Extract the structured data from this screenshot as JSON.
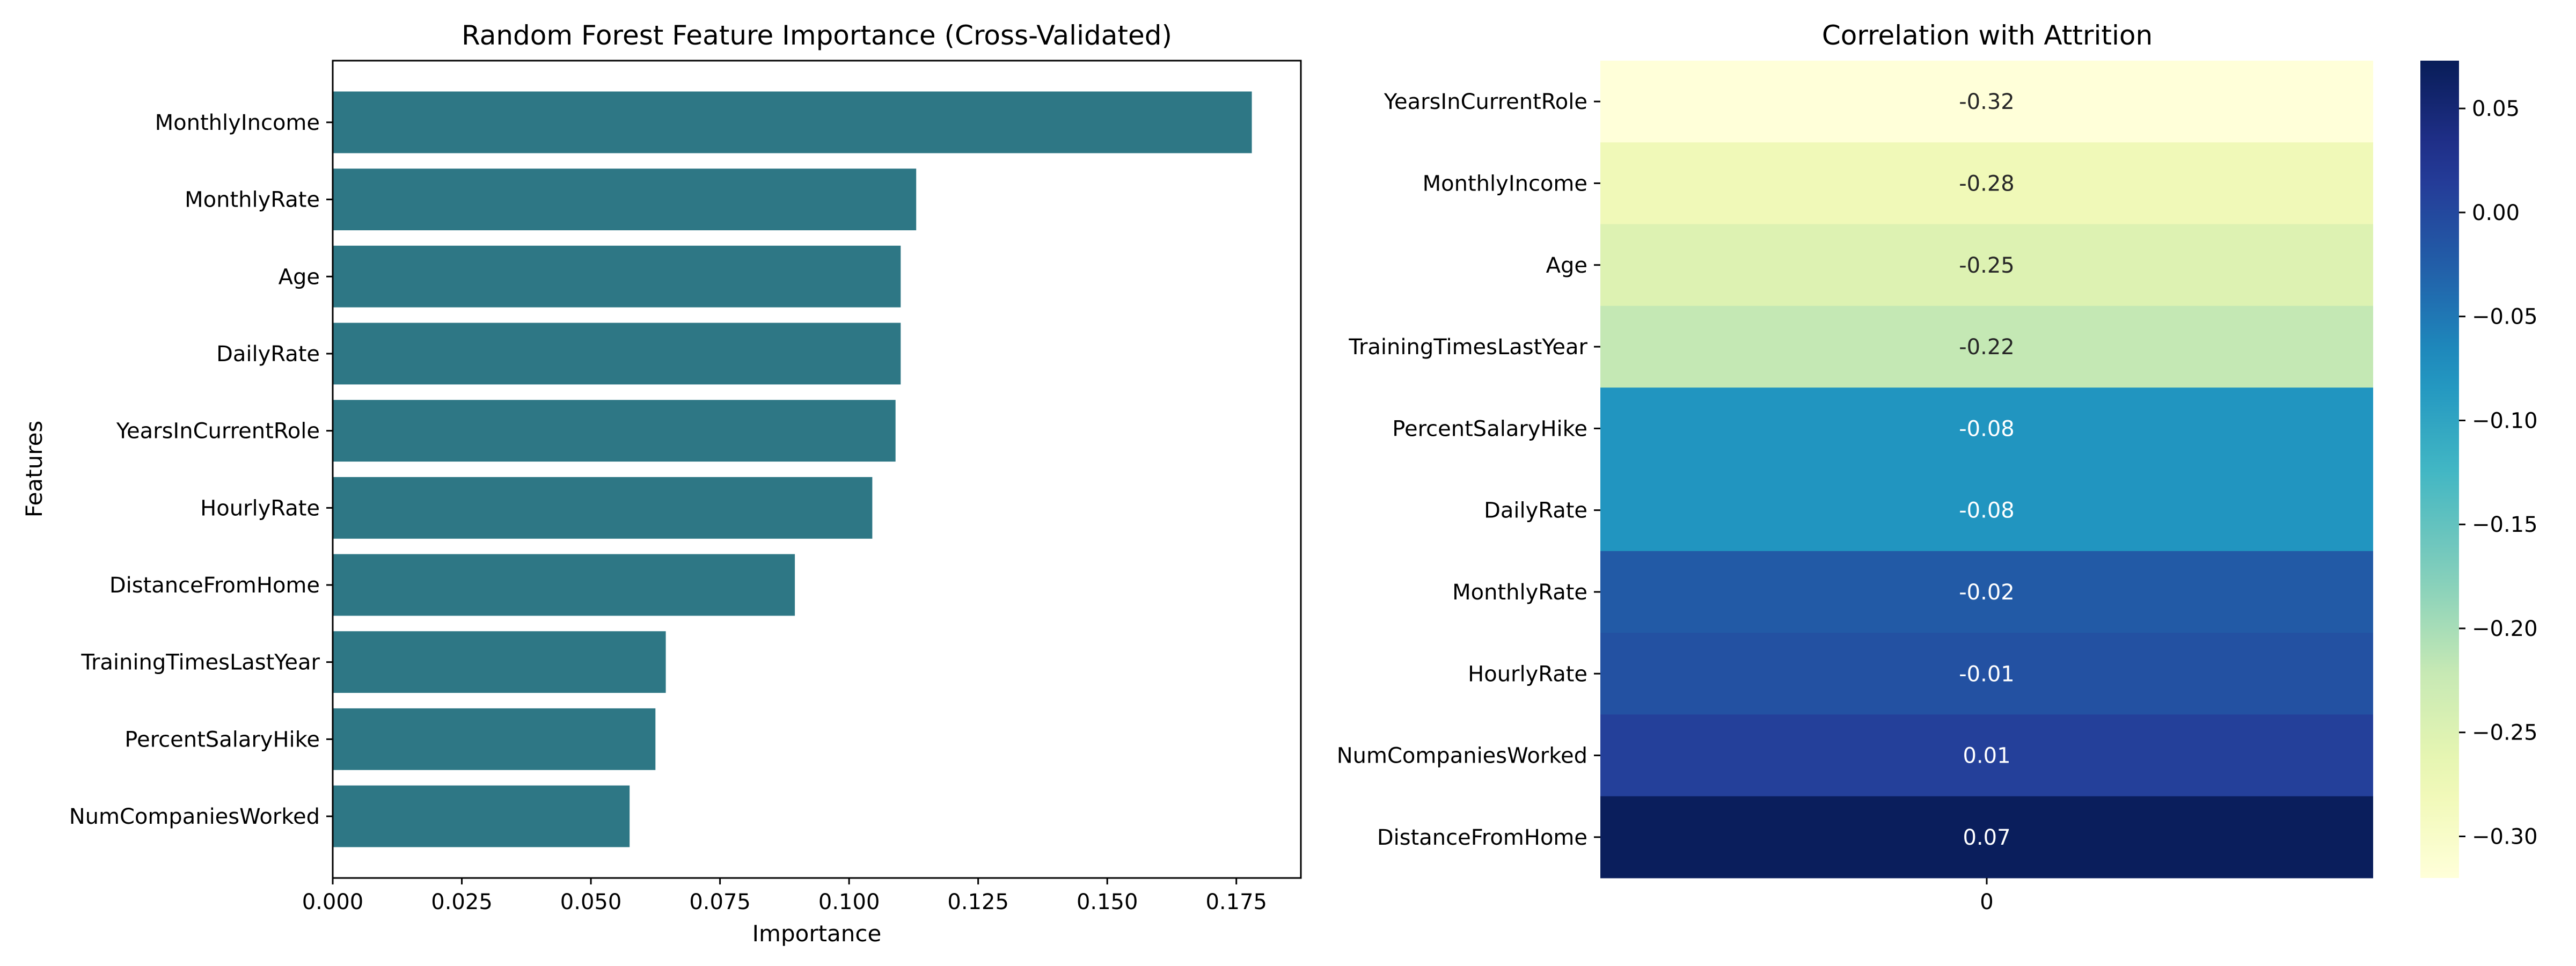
{
  "chart_data": [
    {
      "type": "bar",
      "orientation": "horizontal",
      "title": "Random Forest Feature Importance (Cross-Validated)",
      "xlabel": "Importance",
      "ylabel": "Features",
      "categories": [
        "MonthlyIncome",
        "MonthlyRate",
        "Age",
        "DailyRate",
        "YearsInCurrentRole",
        "HourlyRate",
        "DistanceFromHome",
        "TrainingTimesLastYear",
        "PercentSalaryHike",
        "NumCompaniesWorked"
      ],
      "values": [
        0.178,
        0.113,
        0.11,
        0.11,
        0.109,
        0.1045,
        0.0895,
        0.0645,
        0.0625,
        0.0575
      ],
      "xlim": [
        0,
        0.1875
      ],
      "xticks": [
        "0.000",
        "0.025",
        "0.050",
        "0.075",
        "0.100",
        "0.125",
        "0.150",
        "0.175"
      ],
      "bar_color": "#2e7785",
      "grid": false
    },
    {
      "type": "heatmap",
      "title": "Correlation with Attrition",
      "rows": [
        "YearsInCurrentRole",
        "MonthlyIncome",
        "Age",
        "TrainingTimesLastYear",
        "PercentSalaryHike",
        "DailyRate",
        "MonthlyRate",
        "HourlyRate",
        "NumCompaniesWorked",
        "DistanceFromHome"
      ],
      "columns": [
        "0"
      ],
      "values": [
        -0.32,
        -0.28,
        -0.25,
        -0.22,
        -0.08,
        -0.08,
        -0.02,
        -0.01,
        0.01,
        0.07
      ],
      "annotations": [
        "-0.32",
        "-0.28",
        "-0.25",
        "-0.22",
        "-0.08",
        "-0.08",
        "-0.02",
        "-0.01",
        "0.01",
        "0.07"
      ],
      "colormap": "YlGnBu",
      "colorbar": {
        "range": [
          -0.32,
          0.073
        ],
        "ticks": [
          "0.05",
          "0.00",
          "−0.05",
          "−0.10",
          "−0.15",
          "−0.20",
          "−0.25",
          "−0.30"
        ],
        "tick_values": [
          0.05,
          0.0,
          -0.05,
          -0.1,
          -0.15,
          -0.2,
          -0.25,
          -0.3
        ]
      }
    }
  ]
}
